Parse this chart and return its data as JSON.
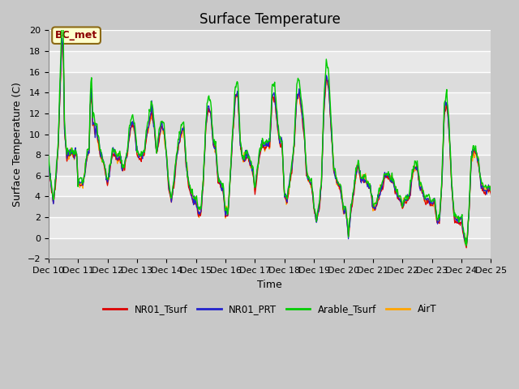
{
  "title": "Surface Temperature",
  "ylabel": "Surface Temperature (C)",
  "xlabel": "Time",
  "ylim": [
    -2,
    20
  ],
  "xlim": [
    0,
    360
  ],
  "x_tick_labels": [
    "Dec 10",
    "Dec 11",
    "Dec 12",
    "Dec 13",
    "Dec 14",
    "Dec 15",
    "Dec 16",
    "Dec 17",
    "Dec 18",
    "Dec 19",
    "Dec 20",
    "Dec 21",
    "Dec 22",
    "Dec 23",
    "Dec 24",
    "Dec 25"
  ],
  "x_tick_positions": [
    0,
    24,
    48,
    72,
    96,
    120,
    144,
    168,
    192,
    216,
    240,
    264,
    288,
    312,
    336,
    360
  ],
  "legend_labels": [
    "NR01_Tsurf",
    "NR01_PRT",
    "Arable_Tsurf",
    "AirT"
  ],
  "colors": [
    "#dd0000",
    "#2222cc",
    "#00cc00",
    "#ffa500"
  ],
  "bc_met_label": "BC_met",
  "bc_met_text_color": "#8b0000",
  "bc_met_bg_color": "#ffffcc",
  "bc_met_edge_color": "#8b6914",
  "fig_bg_color": "#c8c8c8",
  "plot_bg_color": "#e8e8e8",
  "band_colors": [
    "#e0e0e0",
    "#d0d0d0"
  ],
  "title_fontsize": 12,
  "label_fontsize": 9,
  "tick_fontsize": 8
}
